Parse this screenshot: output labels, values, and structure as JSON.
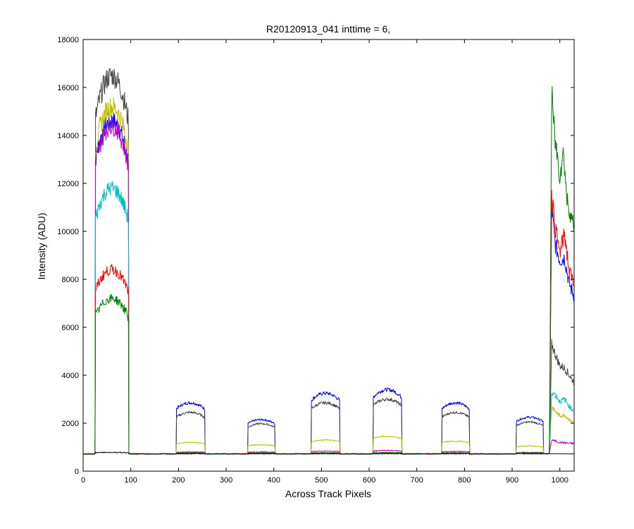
{
  "chart_data": {
    "type": "line",
    "title": "R20120913_041 inttime = 6,",
    "xlabel": "Across Track Pixels",
    "ylabel": "Intensity (ADU)",
    "xlim": [
      0,
      1030
    ],
    "ylim": [
      0,
      18000
    ],
    "xticks": [
      0,
      100,
      200,
      300,
      400,
      500,
      600,
      700,
      800,
      900,
      1000
    ],
    "yticks": [
      0,
      2000,
      4000,
      6000,
      8000,
      10000,
      12000,
      14000,
      16000,
      18000
    ],
    "grid": false,
    "legend": "none",
    "baseline": 720,
    "series": [
      {
        "color": "#0000ff",
        "bands": [
          [
            25,
            95,
            14600
          ],
          [
            195,
            255,
            2850
          ],
          [
            345,
            402,
            2150
          ],
          [
            478,
            538,
            3250
          ],
          [
            608,
            668,
            3400
          ],
          [
            752,
            810,
            2850
          ],
          [
            908,
            965,
            2250
          ]
        ],
        "right": [
          {
            "x": 978,
            "y": 750
          },
          {
            "x": 983,
            "y": 11000
          },
          {
            "x": 990,
            "y": 9500
          },
          {
            "x": 1000,
            "y": 8800
          },
          {
            "x": 1010,
            "y": 8900
          },
          {
            "x": 1020,
            "y": 7800
          },
          {
            "x": 1030,
            "y": 7300
          }
        ]
      },
      {
        "color": "#444444",
        "bands": [
          [
            25,
            95,
            16500
          ],
          [
            195,
            255,
            2450
          ],
          [
            345,
            402,
            1980
          ],
          [
            478,
            538,
            2850
          ],
          [
            608,
            668,
            3000
          ],
          [
            752,
            810,
            2450
          ],
          [
            908,
            965,
            2050
          ]
        ],
        "right": [
          {
            "x": 978,
            "y": 750
          },
          {
            "x": 983,
            "y": 5300
          },
          {
            "x": 990,
            "y": 4900
          },
          {
            "x": 1000,
            "y": 4400
          },
          {
            "x": 1010,
            "y": 4300
          },
          {
            "x": 1020,
            "y": 4000
          },
          {
            "x": 1030,
            "y": 3700
          }
        ]
      },
      {
        "color": "#bfbf00",
        "bands": [
          [
            25,
            95,
            15200
          ],
          [
            195,
            255,
            1200
          ],
          [
            345,
            402,
            1100
          ],
          [
            478,
            538,
            1300
          ],
          [
            608,
            668,
            1450
          ],
          [
            752,
            810,
            1250
          ],
          [
            908,
            965,
            1050
          ]
        ],
        "right": [
          {
            "x": 978,
            "y": 750
          },
          {
            "x": 983,
            "y": 2700
          },
          {
            "x": 990,
            "y": 2500
          },
          {
            "x": 1000,
            "y": 2300
          },
          {
            "x": 1010,
            "y": 2350
          },
          {
            "x": 1020,
            "y": 2150
          },
          {
            "x": 1030,
            "y": 2000
          }
        ]
      },
      {
        "color": "#bf00bf",
        "bands": [
          [
            25,
            95,
            14400
          ],
          [
            195,
            255,
            800
          ],
          [
            345,
            402,
            800
          ],
          [
            478,
            538,
            830
          ],
          [
            608,
            668,
            860
          ],
          [
            752,
            810,
            820
          ],
          [
            908,
            965,
            780
          ]
        ],
        "right": [
          {
            "x": 978,
            "y": 750
          },
          {
            "x": 983,
            "y": 1300
          },
          {
            "x": 1000,
            "y": 1200
          },
          {
            "x": 1030,
            "y": 1150
          }
        ]
      },
      {
        "color": "#00bfbf",
        "bands": [
          [
            25,
            95,
            11800
          ],
          [
            195,
            255,
            760
          ],
          [
            345,
            402,
            760
          ],
          [
            478,
            538,
            760
          ],
          [
            608,
            668,
            770
          ],
          [
            752,
            810,
            760
          ],
          [
            908,
            965,
            760
          ]
        ],
        "right": [
          {
            "x": 978,
            "y": 750
          },
          {
            "x": 983,
            "y": 3300
          },
          {
            "x": 990,
            "y": 3200
          },
          {
            "x": 1000,
            "y": 2900
          },
          {
            "x": 1010,
            "y": 3000
          },
          {
            "x": 1020,
            "y": 2700
          },
          {
            "x": 1030,
            "y": 2500
          }
        ]
      },
      {
        "color": "#ff0000",
        "bands": [
          [
            25,
            95,
            8400
          ],
          [
            195,
            255,
            760
          ],
          [
            345,
            402,
            760
          ],
          [
            478,
            538,
            760
          ],
          [
            608,
            668,
            770
          ],
          [
            752,
            810,
            760
          ],
          [
            908,
            965,
            760
          ]
        ],
        "right": [
          {
            "x": 978,
            "y": 750
          },
          {
            "x": 983,
            "y": 11600
          },
          {
            "x": 990,
            "y": 10200
          },
          {
            "x": 1000,
            "y": 9100
          },
          {
            "x": 1010,
            "y": 9900
          },
          {
            "x": 1020,
            "y": 8300
          },
          {
            "x": 1030,
            "y": 7800
          }
        ]
      },
      {
        "color": "#008000",
        "bands": [
          [
            25,
            95,
            7200
          ],
          [
            195,
            255,
            760
          ],
          [
            345,
            402,
            760
          ],
          [
            478,
            538,
            760
          ],
          [
            608,
            668,
            770
          ],
          [
            752,
            810,
            760
          ],
          [
            908,
            965,
            760
          ]
        ],
        "right": [
          {
            "x": 978,
            "y": 750
          },
          {
            "x": 983,
            "y": 15700
          },
          {
            "x": 990,
            "y": 13800
          },
          {
            "x": 1000,
            "y": 12400
          },
          {
            "x": 1008,
            "y": 13300
          },
          {
            "x": 1015,
            "y": 11300
          },
          {
            "x": 1022,
            "y": 10800
          },
          {
            "x": 1030,
            "y": 10100
          }
        ]
      },
      {
        "color": "#000000",
        "bands": [
          [
            25,
            95,
            780
          ],
          [
            195,
            255,
            730
          ],
          [
            345,
            402,
            730
          ],
          [
            478,
            538,
            730
          ],
          [
            608,
            668,
            730
          ],
          [
            752,
            810,
            730
          ],
          [
            908,
            965,
            730
          ]
        ],
        "right": [
          {
            "x": 978,
            "y": 730
          },
          {
            "x": 1030,
            "y": 720
          }
        ]
      }
    ]
  }
}
